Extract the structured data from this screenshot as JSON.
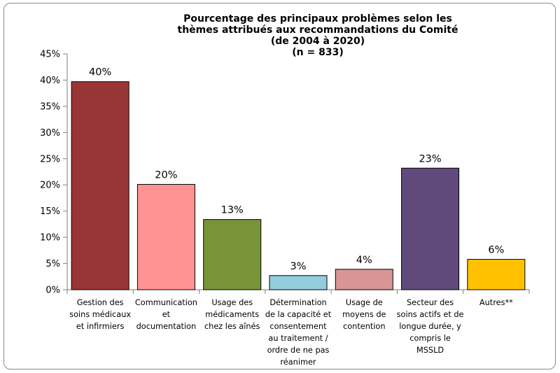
{
  "chart_data": {
    "type": "bar",
    "title_lines": [
      "Pourcentage des principaux problèmes selon les",
      "thèmes attribués aux recommandations du Comité",
      "(de 2004 à 2020)",
      "(n = 833)"
    ],
    "categories": [
      [
        "Gestion des",
        "soins médicaux",
        "et infirmiers"
      ],
      [
        "Communication",
        "et",
        "documentation"
      ],
      [
        "Usage des",
        "médicaments",
        "chez les aînés"
      ],
      [
        "Détermination",
        "de la capacité et",
        "consentement",
        "au traitement /",
        "ordre de ne pas",
        "réanimer"
      ],
      [
        "Usage de",
        "moyens de",
        "contention"
      ],
      [
        "Secteur des",
        "soins actifs et de",
        "longue durée, y",
        "compris le",
        "MSSLD"
      ],
      [
        "Autres**"
      ]
    ],
    "values": [
      39.7,
      20.1,
      13.4,
      2.7,
      3.9,
      23.2,
      5.8
    ],
    "data_labels": [
      "40%",
      "20%",
      "13%",
      "3%",
      "4%",
      "23%",
      "6%"
    ],
    "colors": [
      "#983636",
      "#ff9393",
      "#779538",
      "#93cddd",
      "#d99594",
      "#604a7b",
      "#ffc000"
    ],
    "ylim": [
      0,
      45
    ],
    "yticks": [
      "0%",
      "5%",
      "10%",
      "15%",
      "20%",
      "25%",
      "30%",
      "35%",
      "40%",
      "45%"
    ],
    "xlabel": "",
    "ylabel": "",
    "grid": false,
    "legend": "none"
  }
}
